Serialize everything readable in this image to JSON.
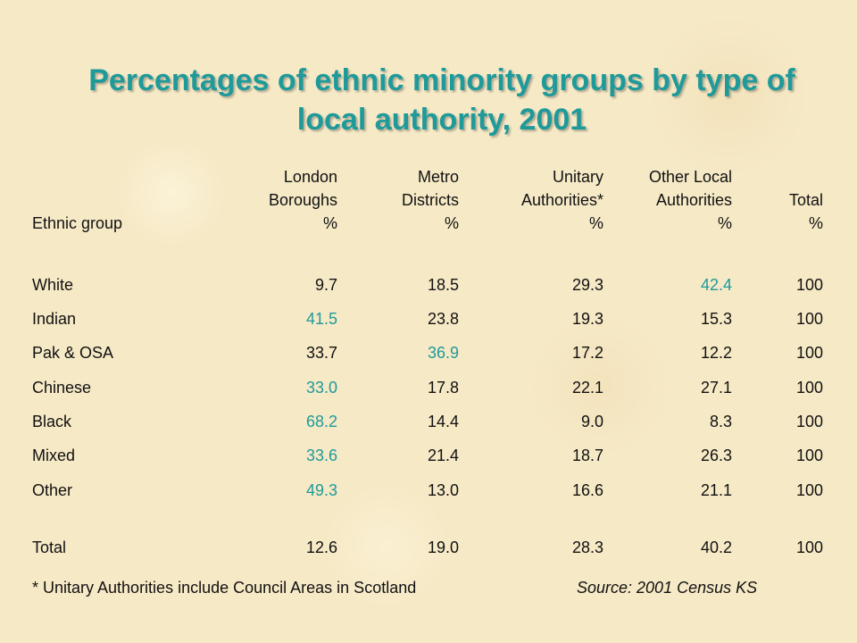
{
  "chart_data": {
    "type": "table",
    "title": "Percentages of ethnic minority groups by type of local authority, 2001",
    "row_header": "Ethnic group",
    "columns": [
      {
        "lines": [
          "London",
          "Boroughs",
          "%"
        ]
      },
      {
        "lines": [
          "Metro",
          "Districts",
          "%"
        ]
      },
      {
        "lines": [
          "Unitary",
          "Authorities*",
          "%"
        ]
      },
      {
        "lines": [
          "Other Local",
          "Authorities",
          "%"
        ]
      },
      {
        "lines": [
          "",
          "Total",
          "%"
        ]
      }
    ],
    "rows": [
      {
        "label": "White",
        "values": [
          "9.7",
          "18.5",
          "29.3",
          "42.4",
          "100"
        ],
        "highlight": 3
      },
      {
        "label": "Indian",
        "values": [
          "41.5",
          "23.8",
          "19.3",
          "15.3",
          "100"
        ],
        "highlight": 0
      },
      {
        "label": "Pak & OSA",
        "values": [
          "33.7",
          "36.9",
          "17.2",
          "12.2",
          "100"
        ],
        "highlight": 1
      },
      {
        "label": "Chinese",
        "values": [
          "33.0",
          "17.8",
          "22.1",
          "27.1",
          "100"
        ],
        "highlight": 0
      },
      {
        "label": "Black",
        "values": [
          "68.2",
          "14.4",
          "9.0",
          "8.3",
          "100"
        ],
        "highlight": 0
      },
      {
        "label": "Mixed",
        "values": [
          "33.6",
          "21.4",
          "18.7",
          "26.3",
          "100"
        ],
        "highlight": 0
      },
      {
        "label": "Other",
        "values": [
          "49.3",
          "13.0",
          "16.6",
          "21.1",
          "100"
        ],
        "highlight": 0
      }
    ],
    "total_row": {
      "label": "Total",
      "values": [
        "12.6",
        "19.0",
        "28.3",
        "40.2",
        "100"
      ]
    },
    "highlight_color": "#1f9a9a"
  },
  "footnote": "* Unitary Authorities include Council Areas in Scotland",
  "source": "Source: 2001 Census KS"
}
